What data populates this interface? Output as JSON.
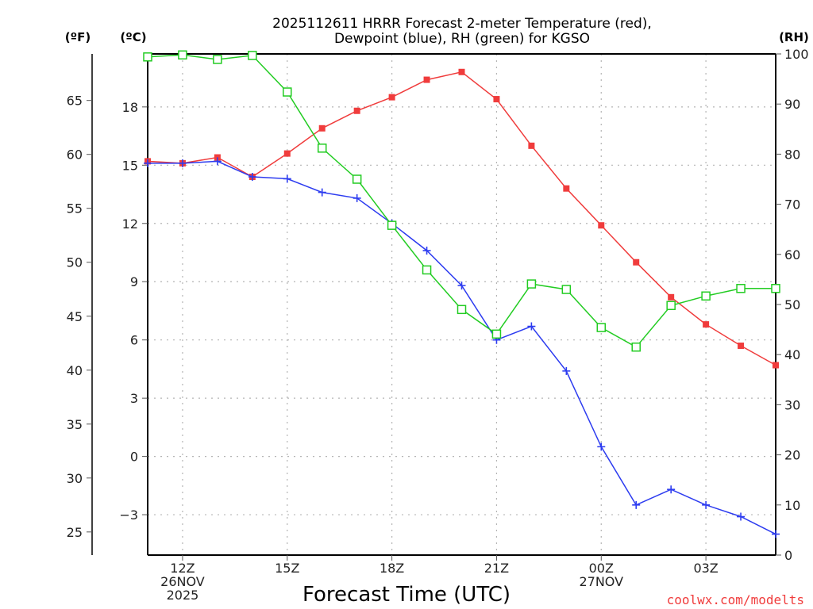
{
  "chart_data": {
    "type": "line",
    "title": [
      "2025112611 HRRR Forecast 2-meter Temperature (red),",
      "Dewpoint (blue), RH (green) for KGSO"
    ],
    "xlabel": "Forecast Time (UTC)",
    "left_axis_labels": {
      "fahrenheit": "(ºF)",
      "celsius": "(ºC)"
    },
    "right_axis_label": "(RH)",
    "credit": "coolwx.com/modelts",
    "x_hours": [
      11,
      12,
      13,
      14,
      15,
      16,
      17,
      18,
      19,
      20,
      21,
      22,
      23,
      24,
      25,
      26,
      27,
      28,
      29
    ],
    "x_range_hours": [
      11,
      29
    ],
    "x_ticks": [
      {
        "hour": 12,
        "lines": [
          "12Z",
          "26NOV",
          "2025"
        ]
      },
      {
        "hour": 15,
        "lines": [
          "15Z"
        ]
      },
      {
        "hour": 18,
        "lines": [
          "18Z"
        ]
      },
      {
        "hour": 21,
        "lines": [
          "21Z"
        ]
      },
      {
        "hour": 24,
        "lines": [
          "00Z",
          "27NOV"
        ]
      },
      {
        "hour": 27,
        "lines": [
          "03Z"
        ]
      }
    ],
    "celsius_range": [
      -5.08,
      20.73
    ],
    "celsius_ticks": [
      18,
      15,
      12,
      9,
      6,
      3,
      0,
      -3
    ],
    "celsius_tick_labels": [
      "18",
      "15",
      "12",
      "9",
      "6",
      "3",
      "0",
      "−3"
    ],
    "fahrenheit_ticks": [
      65,
      60,
      55,
      50,
      45,
      40,
      35,
      30,
      25
    ],
    "rh_range": [
      0,
      100
    ],
    "rh_ticks": [
      100,
      90,
      80,
      70,
      60,
      50,
      40,
      30,
      20,
      10,
      0
    ],
    "grid": true,
    "series": [
      {
        "name": "Temperature",
        "unit": "C",
        "axis": "celsius",
        "color": "#f03c3c",
        "marker": "filled-square",
        "values": [
          15.2,
          15.1,
          15.4,
          14.4,
          15.6,
          16.9,
          17.8,
          18.5,
          19.4,
          19.8,
          18.4,
          16.0,
          13.8,
          11.9,
          10.0,
          8.2,
          6.8,
          5.7,
          4.7
        ]
      },
      {
        "name": "Dewpoint",
        "unit": "C",
        "axis": "celsius",
        "color": "#2d3cf0",
        "marker": "plus",
        "values": [
          15.1,
          15.1,
          15.2,
          14.4,
          14.3,
          13.6,
          13.3,
          12.0,
          10.6,
          8.8,
          6.0,
          6.7,
          4.4,
          0.5,
          -2.5,
          -1.7,
          -2.5,
          -3.1,
          -4.0
        ]
      },
      {
        "name": "RH",
        "unit": "%",
        "axis": "rh",
        "color": "#22cc22",
        "marker": "open-square",
        "values": [
          99.4,
          99.8,
          98.9,
          99.7,
          92.4,
          81.2,
          75.0,
          65.8,
          56.9,
          49.0,
          44.1,
          54.1,
          53.0,
          45.4,
          41.5,
          49.8,
          51.7,
          53.2,
          53.2
        ]
      }
    ]
  }
}
